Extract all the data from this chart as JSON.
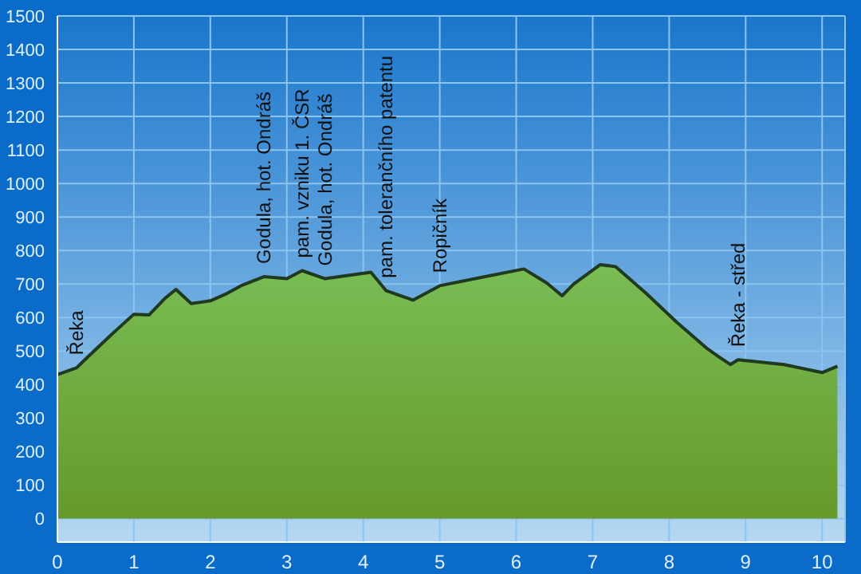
{
  "chart_data": {
    "type": "area",
    "x": [
      0,
      0.25,
      0.4,
      0.7,
      1.0,
      1.2,
      1.4,
      1.55,
      1.75,
      2.0,
      2.2,
      2.4,
      2.7,
      3.0,
      3.2,
      3.5,
      4.1,
      4.3,
      4.65,
      5.0,
      5.5,
      6.1,
      6.4,
      6.6,
      6.75,
      7.1,
      7.3,
      7.7,
      8.1,
      8.5,
      8.65,
      8.8,
      8.9,
      9.5,
      10.0,
      10.2
    ],
    "values": [
      430,
      450,
      483,
      548,
      610,
      608,
      656,
      684,
      642,
      650,
      670,
      695,
      722,
      716,
      740,
      716,
      735,
      680,
      652,
      695,
      718,
      745,
      703,
      665,
      700,
      758,
      752,
      672,
      586,
      507,
      483,
      460,
      474,
      460,
      436,
      455
    ],
    "color": "#79bd55",
    "xlim": [
      0,
      10.3
    ],
    "ylim": [
      -70,
      1500
    ],
    "xticks": [
      0,
      1,
      2,
      3,
      4,
      5,
      6,
      7,
      8,
      9,
      10
    ],
    "yticks": [
      0,
      100,
      200,
      300,
      400,
      500,
      600,
      700,
      800,
      900,
      1000,
      1100,
      1200,
      1300,
      1400,
      1500
    ],
    "grid": true,
    "annotations": [
      {
        "text": "Řeka",
        "x": 0.25,
        "y": 450
      },
      {
        "text": "Godula, hot. Ondráš",
        "x": 2.7,
        "y": 722
      },
      {
        "text": "pam. vzniku 1. ČSR",
        "x": 3.2,
        "y": 740
      },
      {
        "text": "Godula, hot. Ondráš",
        "x": 3.5,
        "y": 716
      },
      {
        "text": "pam. tolerančního patentu",
        "x": 4.3,
        "y": 680
      },
      {
        "text": "Ropičník",
        "x": 5.0,
        "y": 695
      },
      {
        "text": "Řeka - střed",
        "x": 8.9,
        "y": 474
      }
    ]
  }
}
